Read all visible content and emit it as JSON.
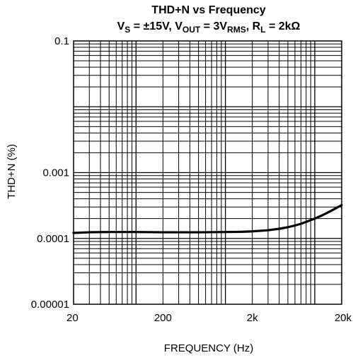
{
  "chart_data": {
    "type": "line",
    "title": "THD+N vs Frequency",
    "subtitle": {
      "vs_main": "V",
      "vs_sub": "S",
      "vs_rest": " = ±15V, ",
      "vout_main": "V",
      "vout_sub": "OUT",
      "vout_rest": " = 3V",
      "vrms_sub": "RMS",
      "rl_sep": ", ",
      "rl_main": "R",
      "rl_sub": "L",
      "rl_rest": " = 2kΩ"
    },
    "xlabel": "FREQUENCY (Hz)",
    "ylabel": "THD+N (%)",
    "x_scale": "log",
    "y_scale": "log",
    "xlim": [
      20,
      20000
    ],
    "ylim": [
      1e-05,
      0.1
    ],
    "x_tick_labels": [
      {
        "value": 20,
        "label": "20"
      },
      {
        "value": 200,
        "label": "200"
      },
      {
        "value": 2000,
        "label": "2k"
      },
      {
        "value": 20000,
        "label": "20k"
      }
    ],
    "y_tick_labels": [
      {
        "value": 0.1,
        "label": "0.1"
      },
      {
        "value": 0.001,
        "label": "0.001"
      },
      {
        "value": 0.0001,
        "label": "0.0001"
      },
      {
        "value": 1e-05,
        "label": "0.00001"
      }
    ],
    "grid": true,
    "series": [
      {
        "color": "#000000",
        "x": [
          20,
          30,
          50,
          100,
          200,
          300,
          500,
          1000,
          1500,
          2000,
          3000,
          4000,
          5000,
          6000,
          7000,
          8000,
          10000,
          12000,
          15000,
          20000
        ],
        "y": [
          0.000121,
          0.000124,
          0.000125,
          0.000125,
          0.000124,
          0.000124,
          0.000124,
          0.000125,
          0.000126,
          0.000128,
          0.000133,
          0.00014,
          0.000148,
          0.000157,
          0.000167,
          0.000178,
          0.0002,
          0.000223,
          0.00026,
          0.00032
        ]
      }
    ]
  }
}
